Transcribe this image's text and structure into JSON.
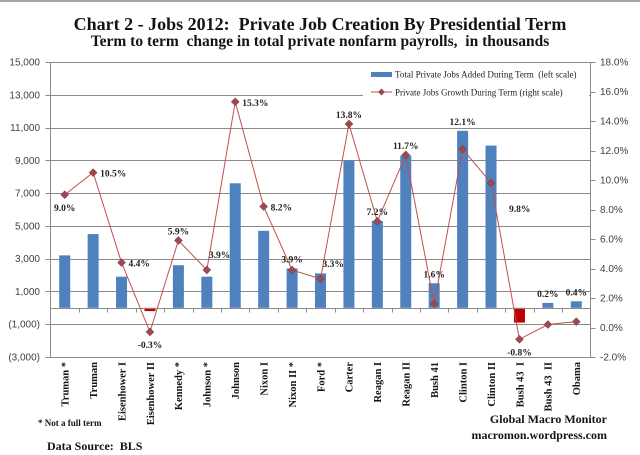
{
  "chart_data": {
    "type": "bar",
    "title": "Chart 2 - Jobs 2012:  Private Job Creation By Presidential Term",
    "subtitle": "Term to term  change in total private nonfarm payrolls,  in thousands",
    "xlabel": "",
    "ylabel_left": "",
    "ylabel_right": "",
    "categories": [
      "Truman *",
      "Truman",
      "Eisenhower I",
      "Eisenhower II",
      "Kennedy *",
      "Johnson *",
      "Johnson",
      "Nixon I",
      "Nixon II *",
      "Ford *",
      "Carter",
      "Reagan I",
      "Reagan II",
      "Bush 41",
      "Clinton I",
      "Clinton II",
      "Bush 43  I",
      "Bush 43  II",
      "Obama"
    ],
    "series": [
      {
        "name": "Total Private Jobs Added During Term  (left scale)",
        "type": "bar",
        "axis": "left",
        "units": "thousands",
        "values": [
          3200,
          4500,
          1900,
          -200,
          2600,
          1900,
          7600,
          4700,
          2400,
          2100,
          9000,
          5300,
          9300,
          1500,
          10800,
          9900,
          -900,
          300,
          400
        ]
      },
      {
        "name": "Private Jobs Growth During Term (right scale)",
        "type": "line",
        "axis": "right",
        "units": "percent",
        "values": [
          9.0,
          10.5,
          4.4,
          -0.3,
          5.9,
          3.9,
          15.3,
          8.2,
          3.9,
          3.3,
          13.8,
          7.2,
          11.7,
          1.6,
          12.1,
          9.8,
          -0.8,
          0.2,
          0.4
        ],
        "labels": [
          "9.0%",
          "10.5%",
          "4.4%",
          "-0.3%",
          "5.9%",
          "3.9%",
          "15.3%",
          "8.2%",
          "3.9%",
          "3.3%",
          "13.8%",
          "7.2%",
          "11.7%",
          "1.6%",
          "12.1%",
          "9.8%",
          "-0.8%",
          "0.2%",
          "0.4%"
        ],
        "label_positions": [
          "below",
          "right",
          "right",
          "below",
          "above",
          "above-right",
          "right",
          "right",
          "above",
          "above-right",
          "above",
          "above",
          "above",
          "above",
          "above",
          "below-right",
          "below",
          "above",
          "above"
        ]
      }
    ],
    "ylim_left": [
      -3000,
      15000
    ],
    "yticks_left": [
      15000,
      13000,
      11000,
      9000,
      7000,
      5000,
      3000,
      1000,
      -1000,
      -3000
    ],
    "yticklabels_left": [
      "15,000",
      "13,000",
      "11,000",
      "9,000",
      "7,000",
      "5,000",
      "3,000",
      "1,000",
      "(1,000)",
      "(3,000)"
    ],
    "ylim_right": [
      -2,
      18
    ],
    "yticks_right": [
      18,
      16,
      14,
      12,
      10,
      8,
      6,
      4,
      2,
      0,
      -2
    ],
    "yticklabels_right": [
      "18.0%",
      "16.0%",
      "14.0%",
      "12.0%",
      "10.0%",
      "8.0%",
      "6.0%",
      "4.0%",
      "2.0%",
      "0.0%",
      "-2.0%"
    ],
    "grid": true,
    "legend": {
      "position": "top-right"
    },
    "colors": {
      "bar": "#4F81BD",
      "bar_negative": "#C00000",
      "line": "#C0504D",
      "marker": "#9B4A52",
      "grid": "#8A8A8A",
      "axis": "#8A8A8A"
    }
  },
  "notes": {
    "footnote": "* Not a full term",
    "source": "Data Source:  BLS",
    "brand": "Global Macro Monitor",
    "site": "macromon.wordpress.com"
  }
}
